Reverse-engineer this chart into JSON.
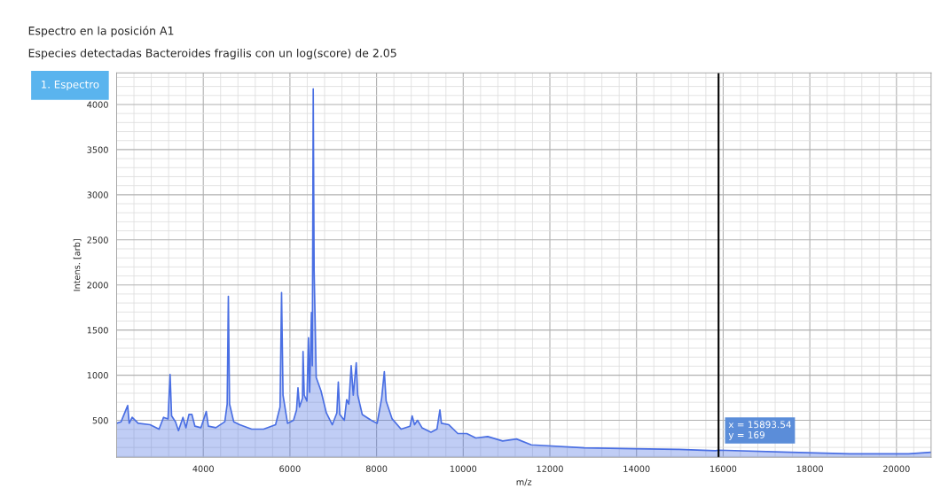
{
  "chart_data": {
    "type": "area",
    "title": "Espectro en la posición A1",
    "subtitle": "Especies detectadas Bacteroides fragilis con un log(score) de 2.05",
    "xlabel": "m/z",
    "ylabel": "Intens. [arb]",
    "annotations": [
      "1. Espectro",
      {
        "text": "x = 15893.54\ny = 169",
        "x": 15893.54,
        "y": 169
      }
    ],
    "ref_lines": [
      {
        "axis": "x",
        "value": 15893.54,
        "color": "#000000"
      }
    ],
    "xlim": [
      2000,
      20800
    ],
    "ylim": [
      90,
      4350
    ],
    "xticks": [
      4000,
      6000,
      8000,
      10000,
      12000,
      14000,
      16000,
      18000,
      20000
    ],
    "yticks": [
      500,
      1000,
      1500,
      2000,
      2500,
      3000,
      3500,
      4000
    ],
    "grid": true,
    "series": [
      {
        "color": "#4a6fe3",
        "x": [
          2000,
          2103,
          2255,
          2290,
          2359,
          2497,
          2772,
          2979,
          3083,
          3186,
          3234,
          3269,
          3359,
          3428,
          3531,
          3600,
          3669,
          3738,
          3807,
          3945,
          4069,
          4117,
          4290,
          4497,
          4552,
          4579,
          4607,
          4703,
          4841,
          5117,
          5393,
          5669,
          5772,
          5807,
          5841,
          5945,
          6083,
          6152,
          6186,
          6221,
          6290,
          6303,
          6331,
          6393,
          6428,
          6455,
          6497,
          6517,
          6538,
          6559,
          6586,
          6607,
          6717,
          6841,
          6979,
          7083,
          7117,
          7152,
          7255,
          7310,
          7359,
          7414,
          7462,
          7531,
          7566,
          7669,
          7876,
          8014,
          8117,
          8179,
          8221,
          8359,
          8566,
          8772,
          8821,
          8876,
          8945,
          9048,
          9255,
          9393,
          9462,
          9497,
          9669,
          9876,
          10083,
          10290,
          10566,
          10910,
          11231,
          11571,
          12796,
          13953,
          14973,
          15823,
          15893.54,
          17557,
          18918,
          20279,
          20796
        ],
        "values": [
          467,
          484,
          664,
          467,
          533,
          467,
          451,
          402,
          533,
          516,
          1007,
          549,
          484,
          386,
          533,
          418,
          565,
          565,
          435,
          418,
          598,
          435,
          418,
          484,
          680,
          1874,
          680,
          484,
          451,
          402,
          402,
          451,
          647,
          1916,
          778,
          467,
          500,
          614,
          860,
          647,
          745,
          1262,
          778,
          713,
          1416,
          811,
          1694,
          1105,
          4173,
          2151,
          1498,
          974,
          827,
          582,
          451,
          582,
          925,
          565,
          500,
          729,
          680,
          1105,
          778,
          1138,
          778,
          565,
          500,
          467,
          745,
          1040,
          713,
          516,
          402,
          435,
          549,
          451,
          500,
          418,
          369,
          402,
          614,
          467,
          451,
          353,
          353,
          304,
          320,
          271,
          293,
          228,
          195,
          185,
          178,
          163,
          169,
          146,
          129,
          129,
          146
        ]
      }
    ]
  }
}
